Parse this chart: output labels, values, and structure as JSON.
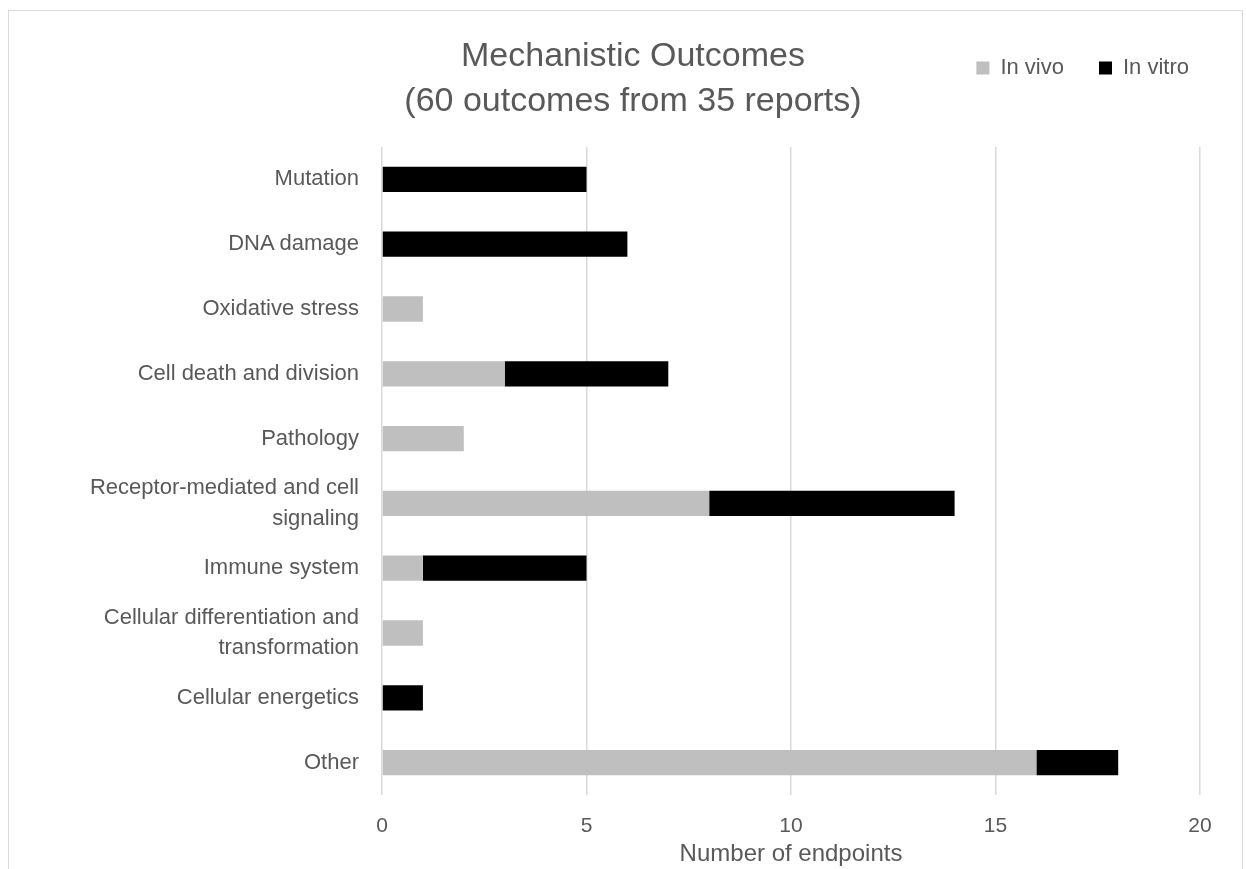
{
  "chart_data": {
    "type": "bar",
    "orientation": "horizontal",
    "stacked": true,
    "title": "Mechanistic Outcomes\n(60 outcomes from 35 reports)",
    "xlabel": "Number of endpoints",
    "categories": [
      "Mutation",
      "DNA damage",
      "Oxidative stress",
      "Cell death and division",
      "Pathology",
      "Receptor-mediated and cell signaling",
      "Immune system",
      "Cellular differentiation and transformation",
      "Cellular energetics",
      "Other"
    ],
    "series": [
      {
        "name": "In vivo",
        "color": "#bfbfbf",
        "values": [
          0,
          0,
          1,
          3,
          2,
          8,
          1,
          1,
          0,
          16
        ]
      },
      {
        "name": "In vitro",
        "color": "#000000",
        "values": [
          5,
          6,
          0,
          4,
          0,
          6,
          4,
          0,
          1,
          2
        ]
      }
    ],
    "xlim": [
      0,
      20
    ],
    "xticks": [
      0,
      5,
      10,
      15,
      20
    ],
    "grid": "x",
    "legend": "top right"
  }
}
